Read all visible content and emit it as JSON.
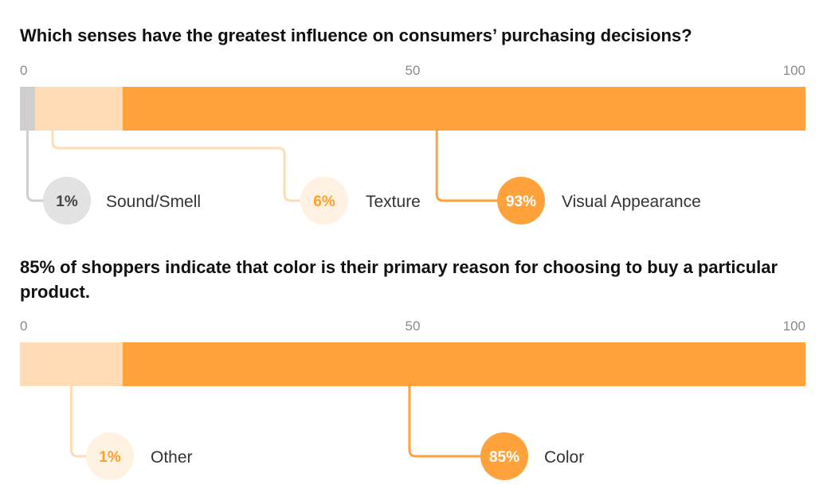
{
  "colors": {
    "grey": "#cfcfcf",
    "light": "#ffdcb6",
    "orange": "#ffa23b",
    "grey_circle": "#e2e2e2",
    "light_circle": "#fff2e3",
    "grey_text": "#444444",
    "light_text": "#ff9f2e",
    "orange_text": "#ffffff"
  },
  "chart_data": [
    {
      "type": "bar",
      "stacked": true,
      "orientation": "horizontal",
      "title": "Which senses have the greatest influence on consumers’ purchasing decisions?",
      "xlim": [
        0,
        100
      ],
      "ticks": [
        "0",
        "50",
        "100"
      ],
      "series": [
        {
          "name": "Sound/Smell",
          "value": 1,
          "display": "1%",
          "color": "grey",
          "circle": "grey_circle",
          "text": "grey_text"
        },
        {
          "name": "Texture",
          "value": 6,
          "display": "6%",
          "color": "light",
          "circle": "light_circle",
          "text": "light_text"
        },
        {
          "name": "Visual Appearance",
          "value": 93,
          "display": "93%",
          "color": "orange",
          "circle": "orange",
          "text": "orange_text"
        }
      ]
    },
    {
      "type": "bar",
      "stacked": true,
      "orientation": "horizontal",
      "title": "85% of shoppers indicate that color is their primary reason for choosing to buy a particular product.",
      "xlim": [
        0,
        100
      ],
      "ticks": [
        "0",
        "50",
        "100"
      ],
      "series": [
        {
          "name": "Other",
          "value": 1,
          "display": "1%",
          "color": "light",
          "circle": "light_circle",
          "text": "light_text"
        },
        {
          "name": "Color",
          "value": 85,
          "display": "85%",
          "color": "orange",
          "circle": "orange",
          "text": "orange_text"
        }
      ]
    }
  ]
}
